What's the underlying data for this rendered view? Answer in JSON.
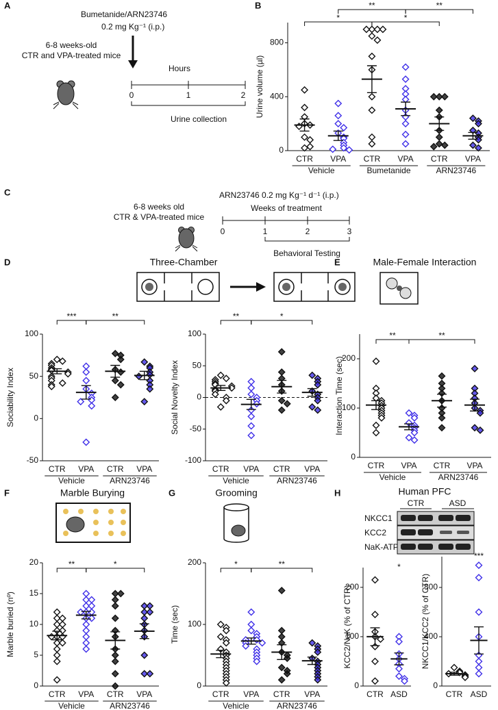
{
  "panel_labels": [
    "A",
    "B",
    "C",
    "D",
    "E",
    "F",
    "G",
    "H"
  ],
  "panel_titles": [
    "Three-Chamber",
    "Male-Female Interaction",
    "Marble Burying",
    "Grooming",
    "Human PFC"
  ],
  "protocol_a": {
    "drug": "Bumetanide/ARN23746",
    "dose": "0.2 mg Kg⁻¹ (i.p.)",
    "mice": [
      "6-8 weeks-old",
      "CTR and VPA-treated mice"
    ],
    "axis_label": "Hours",
    "ticks": [
      "0",
      "1",
      "2"
    ],
    "period": "Urine collection"
  },
  "protocol_c": {
    "dose": "ARN23746 0.2 mg Kg⁻¹ d⁻¹ (i.p.)",
    "mice": [
      "6-8 weeks old",
      "CTR & VPA-treated mice"
    ],
    "axis_label": "Weeks  of treatment",
    "ticks": [
      "0",
      "1",
      "2",
      "3"
    ],
    "period": "Behavioral Testing"
  },
  "blot": {
    "groups": [
      "CTR",
      "ASD"
    ],
    "rows": [
      "NKCC1",
      "KCC2",
      "NaK-ATPase"
    ]
  },
  "chart_data": [
    {
      "type": "dotplot",
      "ylabel": "Urine volume (µl)",
      "ylim": [
        0,
        950
      ],
      "yticks": [
        0,
        400,
        800
      ],
      "groups": [
        "Vehicle",
        "Bumetanide",
        "ARN23746"
      ],
      "series": [
        {
          "name": "CTR",
          "color": "#111111",
          "filled": false,
          "values": [
            450,
            320,
            250,
            200,
            190,
            180,
            100,
            80,
            20,
            30
          ],
          "mean": 190,
          "sem": 45
        },
        {
          "name": "VPA",
          "color": "#3f2fe8",
          "filled": false,
          "values": [
            350,
            260,
            200,
            170,
            130,
            100,
            90,
            60,
            40,
            20,
            10,
            5
          ],
          "mean": 110,
          "sem": 35
        },
        {
          "name": "CTR",
          "color": "#111111",
          "filled": false,
          "values": [
            900,
            900,
            900,
            900,
            850,
            820,
            700,
            600,
            400,
            300,
            100,
            50
          ],
          "mean": 530,
          "sem": 100
        },
        {
          "name": "VPA",
          "color": "#3f2fe8",
          "filled": false,
          "values": [
            620,
            530,
            460,
            420,
            380,
            300,
            250,
            200,
            120,
            50
          ],
          "mean": 310,
          "sem": 50
        },
        {
          "name": "CTR",
          "color": "#111111",
          "filled": true,
          "values": [
            400,
            400,
            400,
            300,
            250,
            150,
            100,
            50,
            40,
            30
          ],
          "mean": 200,
          "sem": 50
        },
        {
          "name": "VPA",
          "color": "#3f2fe8",
          "filled": true,
          "values": [
            240,
            220,
            200,
            150,
            130,
            100,
            80,
            40,
            20
          ],
          "mean": 110,
          "sem": 25
        }
      ],
      "brackets": [
        {
          "label": "*",
          "between": [
            0,
            2
          ]
        },
        {
          "label": "*",
          "between": [
            2,
            4
          ]
        },
        {
          "label": "**",
          "between": [
            1,
            3
          ]
        },
        {
          "label": "**",
          "between": [
            3,
            5
          ]
        }
      ]
    },
    {
      "type": "dotplot",
      "ylabel": "Sociability Index",
      "ylim": [
        -50,
        100
      ],
      "yticks": [
        -50,
        0,
        50,
        100
      ],
      "groups": [
        "Vehicle",
        "ARN23746"
      ],
      "series": [
        {
          "name": "CTR",
          "color": "#111111",
          "filled": false,
          "values": [
            70,
            68,
            65,
            63,
            60,
            58,
            57,
            55,
            53,
            50,
            48,
            45,
            42,
            40,
            38
          ],
          "mean": 56,
          "sem": 3
        },
        {
          "name": "VPA",
          "color": "#3f2fe8",
          "filled": false,
          "values": [
            62,
            55,
            45,
            35,
            30,
            25,
            22,
            20,
            15,
            -28
          ],
          "mean": 31,
          "sem": 8
        },
        {
          "name": "CTR",
          "color": "#111111",
          "filled": true,
          "values": [
            77,
            75,
            70,
            58,
            55,
            45,
            40,
            25
          ],
          "mean": 56,
          "sem": 7
        },
        {
          "name": "VPA",
          "color": "#3f2fe8",
          "filled": true,
          "values": [
            67,
            62,
            60,
            55,
            52,
            50,
            45,
            40,
            35,
            20
          ],
          "mean": 51,
          "sem": 5
        }
      ],
      "brackets": [
        {
          "label": "***",
          "between": [
            0,
            1
          ]
        },
        {
          "label": "**",
          "between": [
            1,
            3
          ]
        }
      ]
    },
    {
      "type": "dotplot",
      "ylabel": "Social Novelty Index",
      "ylim": [
        -100,
        100
      ],
      "yticks": [
        -100,
        -50,
        0,
        50,
        100
      ],
      "zero_line": true,
      "groups": [
        "Vehicle",
        "ARN23746"
      ],
      "series": [
        {
          "name": "CTR",
          "color": "#111111",
          "filled": false,
          "values": [
            35,
            30,
            28,
            25,
            22,
            20,
            18,
            15,
            12,
            10,
            5,
            0,
            -5,
            -15
          ],
          "mean": 15,
          "sem": 4
        },
        {
          "name": "VPA",
          "color": "#3f2fe8",
          "filled": false,
          "values": [
            25,
            15,
            5,
            0,
            -5,
            -10,
            -20,
            -30,
            -45,
            -60
          ],
          "mean": -11,
          "sem": 8
        },
        {
          "name": "CTR",
          "color": "#111111",
          "filled": true,
          "values": [
            72,
            40,
            30,
            20,
            10,
            -5,
            -10,
            -20
          ],
          "mean": 17,
          "sem": 10
        },
        {
          "name": "VPA",
          "color": "#3f2fe8",
          "filled": true,
          "values": [
            35,
            30,
            25,
            20,
            10,
            5,
            0,
            -5,
            -15,
            -20
          ],
          "mean": 8,
          "sem": 6
        }
      ],
      "brackets": [
        {
          "label": "**",
          "between": [
            0,
            1
          ]
        },
        {
          "label": "*",
          "between": [
            1,
            3
          ]
        }
      ]
    },
    {
      "type": "dotplot",
      "ylabel": "Interaction Time (sec)",
      "ylim": [
        0,
        250
      ],
      "yticks": [
        0,
        100,
        200
      ],
      "groups": [
        "Vehicle",
        "ARN23746"
      ],
      "series": [
        {
          "name": "CTR",
          "color": "#111111",
          "filled": false,
          "values": [
            195,
            140,
            130,
            120,
            115,
            110,
            105,
            100,
            95,
            90,
            85,
            80,
            65,
            50
          ],
          "mean": 106,
          "sem": 9
        },
        {
          "name": "VPA",
          "color": "#3f2fe8",
          "filled": false,
          "values": [
            90,
            85,
            80,
            70,
            65,
            60,
            55,
            50,
            40,
            35
          ],
          "mean": 62,
          "sem": 6
        },
        {
          "name": "CTR",
          "color": "#111111",
          "filled": true,
          "values": [
            165,
            150,
            140,
            130,
            115,
            100,
            90,
            80,
            60
          ],
          "mean": 115,
          "sem": 13
        },
        {
          "name": "VPA",
          "color": "#3f2fe8",
          "filled": true,
          "values": [
            180,
            140,
            130,
            120,
            110,
            100,
            95,
            90,
            60,
            55
          ],
          "mean": 106,
          "sem": 12
        }
      ],
      "brackets": [
        {
          "label": "**",
          "between": [
            0,
            1
          ]
        },
        {
          "label": "**",
          "between": [
            1,
            3
          ]
        }
      ]
    },
    {
      "type": "dotplot",
      "ylabel": "Marble buried (nº)",
      "ylim": [
        0,
        20
      ],
      "yticks": [
        0,
        5,
        10,
        15,
        20
      ],
      "groups": [
        "Vehicle",
        "ARN23746"
      ],
      "series": [
        {
          "name": "CTR",
          "color": "#111111",
          "filled": false,
          "values": [
            12,
            11,
            11,
            10,
            10,
            9,
            9,
            8,
            8,
            8,
            7,
            7,
            6,
            5,
            4,
            1
          ],
          "mean": 8.2,
          "sem": 0.7
        },
        {
          "name": "VPA",
          "color": "#3f2fe8",
          "filled": false,
          "values": [
            15,
            14,
            14,
            13,
            13,
            12,
            12,
            12,
            11,
            11,
            10,
            9,
            8,
            7,
            6
          ],
          "mean": 11.5,
          "sem": 0.6
        },
        {
          "name": "CTR",
          "color": "#111111",
          "filled": true,
          "values": [
            15,
            15,
            14,
            13,
            11,
            9,
            8,
            6,
            5,
            4,
            2,
            0
          ],
          "mean": 7.4,
          "sem": 1.4
        },
        {
          "name": "VPA",
          "color": "#3f2fe8",
          "filled": true,
          "values": [
            13,
            13,
            12,
            12,
            11,
            10,
            9,
            8,
            5,
            2,
            2
          ],
          "mean": 8.9,
          "sem": 1.2
        }
      ],
      "brackets": [
        {
          "label": "**",
          "between": [
            0,
            1
          ]
        },
        {
          "label": "*",
          "between": [
            1,
            3
          ]
        }
      ]
    },
    {
      "type": "dotplot",
      "ylabel": "Time (sec)",
      "ylim": [
        0,
        200
      ],
      "yticks": [
        0,
        100,
        200
      ],
      "groups": [
        "Vehicle",
        "ARN23746"
      ],
      "series": [
        {
          "name": "CTR",
          "color": "#111111",
          "filled": false,
          "values": [
            100,
            95,
            90,
            80,
            75,
            70,
            60,
            55,
            50,
            45,
            40,
            35,
            30,
            25,
            20,
            15,
            10,
            5
          ],
          "mean": 52,
          "sem": 6
        },
        {
          "name": "VPA",
          "color": "#3f2fe8",
          "filled": false,
          "values": [
            120,
            100,
            90,
            85,
            80,
            75,
            75,
            70,
            70,
            65,
            60,
            55,
            50,
            45,
            40
          ],
          "mean": 73,
          "sem": 5
        },
        {
          "name": "CTR",
          "color": "#111111",
          "filled": true,
          "values": [
            155,
            90,
            80,
            70,
            55,
            50,
            45,
            30,
            25,
            20,
            10
          ],
          "mean": 55,
          "sem": 12
        },
        {
          "name": "VPA",
          "color": "#3f2fe8",
          "filled": true,
          "values": [
            70,
            65,
            60,
            55,
            45,
            40,
            35,
            30,
            25,
            20,
            15,
            10
          ],
          "mean": 41,
          "sem": 6
        }
      ],
      "brackets": [
        {
          "label": "*",
          "between": [
            0,
            1
          ]
        },
        {
          "label": "**",
          "between": [
            1,
            3
          ]
        }
      ]
    },
    {
      "type": "dotplot",
      "ylabel": "KCC2/NaK (% of CTR)",
      "ylim": [
        0,
        240
      ],
      "yticks": [
        0,
        100,
        200
      ],
      "series": [
        {
          "name": "CTR",
          "color": "#111111",
          "filled": false,
          "values": [
            215,
            145,
            110,
            100,
            95,
            80,
            50,
            10
          ],
          "mean": 100,
          "sem": 18
        },
        {
          "name": "ASD",
          "color": "#3f2fe8",
          "filled": false,
          "values": [
            100,
            90,
            65,
            55,
            45,
            35,
            20,
            15,
            10
          ],
          "mean": 55,
          "sem": 12
        }
      ],
      "annotations": [
        {
          "label": "*",
          "series": 1
        }
      ]
    },
    {
      "type": "dotplot",
      "ylabel": "NKCC1/KCC2 (% of CTR)",
      "ylim": [
        0,
        1050
      ],
      "yticks": [
        0,
        400,
        800
      ],
      "series": [
        {
          "name": "CTR",
          "color": "#111111",
          "filled": false,
          "values": [
            150,
            120,
            110,
            100,
            90,
            80,
            70
          ],
          "mean": 100,
          "sem": 12
        },
        {
          "name": "ASD",
          "color": "#3f2fe8",
          "filled": false,
          "values": [
            980,
            880,
            600,
            400,
            250,
            200,
            150,
            100
          ],
          "mean": 370,
          "sem": 110
        }
      ],
      "annotations": [
        {
          "label": "***",
          "series": 1
        }
      ]
    }
  ]
}
